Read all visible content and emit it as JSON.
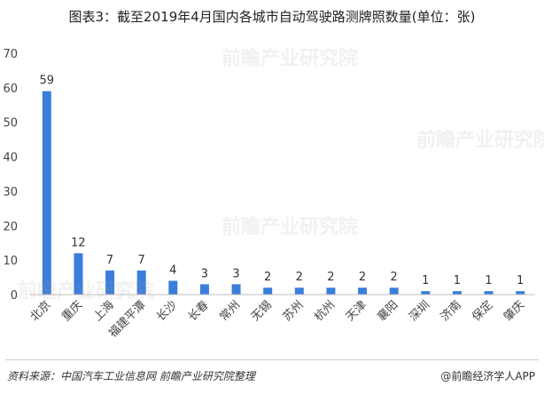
{
  "title": "图表3：截至2019年4月国内各城市自动驾驶路测牌照数量(单位：张)",
  "source": "资料来源：中国汽车工业信息网 前瞻产业研究院整理",
  "brand": "@前瞻经济学人APP",
  "watermark": "前瞻产业研究院",
  "colors": {
    "bar": "#3b7ddb",
    "axis": "#bfbfbf",
    "text": "#444444"
  },
  "chart_data": {
    "type": "bar",
    "categories": [
      "北京",
      "重庆",
      "上海",
      "福建平潭",
      "长沙",
      "长春",
      "常州",
      "无锡",
      "苏州",
      "杭州",
      "天津",
      "襄阳",
      "深圳",
      "济南",
      "保定",
      "肇庆"
    ],
    "values": [
      59,
      12,
      7,
      7,
      4,
      3,
      3,
      2,
      2,
      2,
      2,
      2,
      1,
      1,
      1,
      1
    ],
    "ylim": [
      0,
      70
    ],
    "yticks": [
      0,
      10,
      20,
      30,
      40,
      50,
      60,
      70
    ],
    "grid": false,
    "xlabel": "",
    "ylabel": ""
  }
}
